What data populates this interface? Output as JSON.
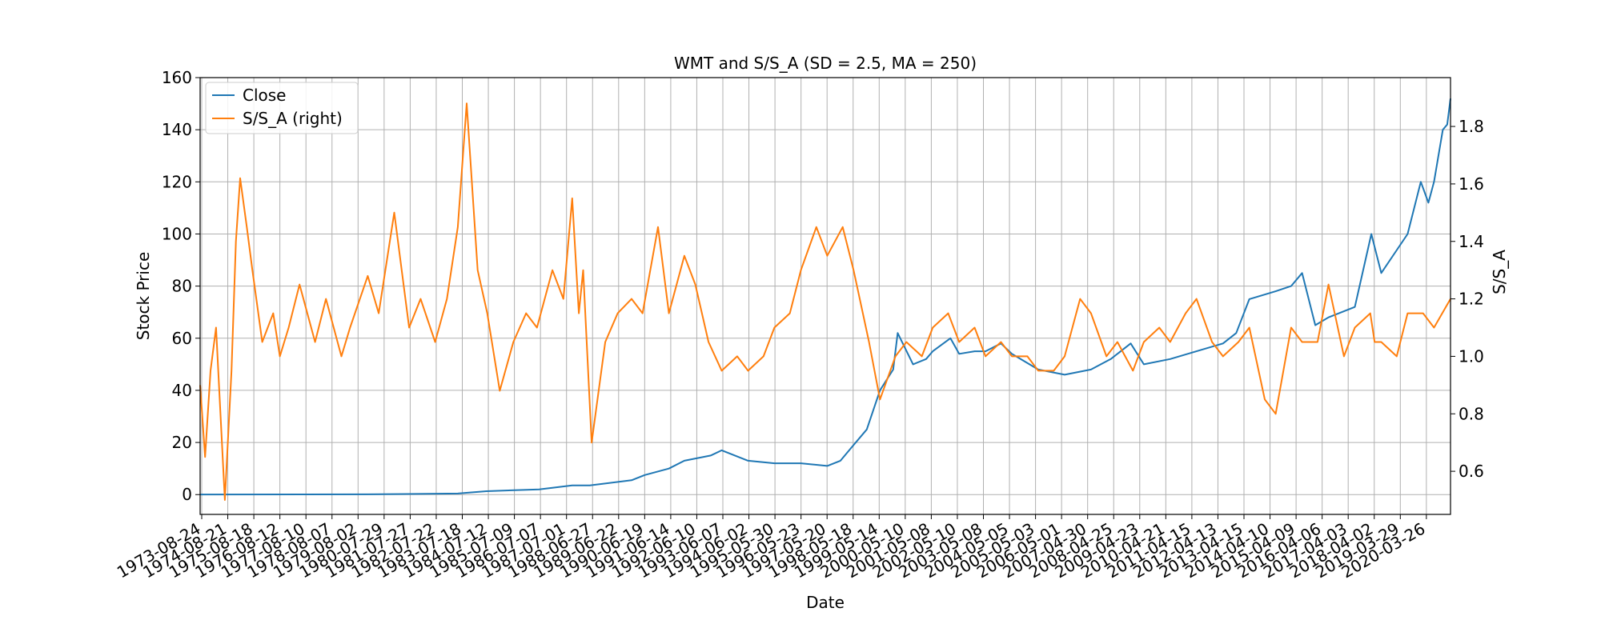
{
  "chart_data": {
    "type": "line",
    "title": "WMT and S/S_A (SD = 2.5, MA = 250)",
    "xlabel": "Date",
    "ylabel": "Stock Price",
    "y2label": "S/S_A",
    "xlim": [
      "1973-08-24",
      "2021-01-15"
    ],
    "ylim": [
      -7.6,
      160
    ],
    "y2lim": [
      0.45,
      1.97
    ],
    "grid": true,
    "legend_position": "top-left",
    "x_tick_labels": [
      "1973-08-24",
      "1974-08-21",
      "1975-08-18",
      "1976-08-12",
      "1977-08-10",
      "1978-08-07",
      "1979-08-02",
      "1980-07-29",
      "1981-07-27",
      "1982-07-22",
      "1983-07-18",
      "1984-07-12",
      "1985-07-09",
      "1986-07-07",
      "1987-07-01",
      "1988-06-27",
      "1989-06-22",
      "1990-06-19",
      "1991-06-14",
      "1992-06-10",
      "1993-06-07",
      "1994-06-02",
      "1995-05-30",
      "1996-05-23",
      "1997-05-20",
      "1998-05-18",
      "1999-05-14",
      "2000-05-10",
      "2001-05-08",
      "2002-05-10",
      "2003-05-08",
      "2004-05-05",
      "2005-05-03",
      "2006-05-01",
      "2007-04-30",
      "2008-04-25",
      "2009-04-23",
      "2010-04-21",
      "2011-04-15",
      "2012-04-13",
      "2013-04-15",
      "2014-04-10",
      "2015-04-09",
      "2016-04-06",
      "2017-04-03",
      "2018-04-02",
      "2019-03-29",
      "2020-03-26"
    ],
    "y_ticks": [
      0,
      20,
      40,
      60,
      80,
      100,
      120,
      140,
      160
    ],
    "y2_ticks": [
      0.6,
      0.8,
      1.0,
      1.2,
      1.4,
      1.6,
      1.8
    ],
    "series": [
      {
        "name": "Close",
        "axis": "left",
        "color": "#1f77b4",
        "x": [
          "1973-08-24",
          "1980-01-01",
          "1983-06-01",
          "1984-07-01",
          "1986-07-01",
          "1987-10-01",
          "1988-06-01",
          "1990-01-01",
          "1990-07-01",
          "1991-06-01",
          "1992-01-01",
          "1993-01-01",
          "1993-06-01",
          "1994-06-01",
          "1995-06-01",
          "1996-06-01",
          "1997-06-01",
          "1997-12-01",
          "1998-05-01",
          "1998-12-01",
          "1999-06-01",
          "1999-12-01",
          "2000-02-01",
          "2000-09-01",
          "2001-03-01",
          "2001-06-01",
          "2002-02-01",
          "2002-06-01",
          "2003-01-01",
          "2003-06-01",
          "2004-01-01",
          "2004-06-01",
          "2005-06-01",
          "2006-06-01",
          "2007-06-01",
          "2008-03-01",
          "2008-12-01",
          "2009-06-01",
          "2010-06-01",
          "2011-06-01",
          "2012-06-01",
          "2012-12-01",
          "2013-06-01",
          "2014-06-01",
          "2015-01-01",
          "2015-06-01",
          "2015-12-01",
          "2016-06-01",
          "2017-06-01",
          "2018-01-15",
          "2018-06-01",
          "2019-06-01",
          "2019-12-01",
          "2020-03-15",
          "2020-06-01",
          "2020-10-01",
          "2020-12-01",
          "2021-01-15"
        ],
        "values": [
          0.05,
          0.1,
          0.4,
          1.3,
          2.0,
          3.5,
          3.5,
          5.5,
          7.5,
          10,
          13,
          15,
          17,
          13,
          12,
          12,
          11,
          13,
          18,
          25,
          40,
          48,
          62,
          50,
          52,
          55,
          60,
          54,
          55,
          55,
          58,
          54,
          48,
          46,
          48,
          52,
          58,
          50,
          52,
          55,
          58,
          62,
          75,
          78,
          80,
          85,
          65,
          68,
          72,
          100,
          85,
          100,
          120,
          112,
          120,
          140,
          142,
          152
        ]
      },
      {
        "name": "S/S_A (right)",
        "axis": "right",
        "color": "#ff7f0e",
        "x": [
          "1973-08-24",
          "1973-11-01",
          "1974-01-15",
          "1974-04-01",
          "1974-08-01",
          "1974-11-01",
          "1975-01-01",
          "1975-03-01",
          "1975-06-01",
          "1975-08-18",
          "1976-01-01",
          "1976-06-01",
          "1976-09-01",
          "1977-01-01",
          "1977-06-01",
          "1978-01-01",
          "1978-06-01",
          "1979-01-01",
          "1979-05-01",
          "1980-01-01",
          "1980-06-01",
          "1981-01-01",
          "1981-07-27",
          "1982-01-01",
          "1982-07-22",
          "1983-01-01",
          "1983-06-01",
          "1983-10-01",
          "1984-03-01",
          "1984-07-12",
          "1985-01-01",
          "1985-07-09",
          "1986-01-01",
          "1986-06-01",
          "1987-01-01",
          "1987-06-01",
          "1987-10-01",
          "1988-01-01",
          "1988-03-01",
          "1988-06-27",
          "1989-01-01",
          "1989-06-22",
          "1990-01-01",
          "1990-06-01",
          "1991-01-01",
          "1991-06-01",
          "1992-01-01",
          "1992-06-01",
          "1992-12-01",
          "1993-06-01",
          "1994-01-01",
          "1994-06-01",
          "1995-01-01",
          "1995-06-01",
          "1996-01-01",
          "1996-06-01",
          "1997-01-01",
          "1997-06-01",
          "1998-01-01",
          "1998-06-01",
          "1999-01-01",
          "1999-06-01",
          "2000-01-01",
          "2000-06-01",
          "2001-01-01",
          "2001-06-01",
          "2002-01-01",
          "2002-06-01",
          "2003-01-01",
          "2003-06-01",
          "2004-01-01",
          "2004-06-01",
          "2005-01-01",
          "2005-06-01",
          "2006-01-01",
          "2006-06-01",
          "2007-01-01",
          "2007-06-01",
          "2008-01-01",
          "2008-06-01",
          "2009-01-01",
          "2009-06-01",
          "2010-01-01",
          "2010-06-01",
          "2011-01-01",
          "2011-06-01",
          "2012-01-01",
          "2012-06-01",
          "2013-01-01",
          "2013-06-01",
          "2014-01-01",
          "2014-06-01",
          "2015-01-01",
          "2015-06-01",
          "2016-01-01",
          "2016-06-01",
          "2017-01-01",
          "2017-06-01",
          "2018-01-01",
          "2018-03-01",
          "2018-06-01",
          "2019-01-01",
          "2019-06-01",
          "2020-01-01",
          "2020-06-01",
          "2021-01-15"
        ],
        "values": [
          0.9,
          0.65,
          0.95,
          1.1,
          0.5,
          0.95,
          1.4,
          1.62,
          1.45,
          1.3,
          1.05,
          1.15,
          1.0,
          1.1,
          1.25,
          1.05,
          1.2,
          1.0,
          1.1,
          1.28,
          1.15,
          1.5,
          1.1,
          1.2,
          1.05,
          1.2,
          1.45,
          1.88,
          1.3,
          1.15,
          0.88,
          1.05,
          1.15,
          1.1,
          1.3,
          1.2,
          1.55,
          1.15,
          1.3,
          0.7,
          1.05,
          1.15,
          1.2,
          1.15,
          1.45,
          1.15,
          1.35,
          1.25,
          1.05,
          0.95,
          1.0,
          0.95,
          1.0,
          1.1,
          1.15,
          1.3,
          1.45,
          1.35,
          1.45,
          1.3,
          1.05,
          0.85,
          1.0,
          1.05,
          1.0,
          1.1,
          1.15,
          1.05,
          1.1,
          1.0,
          1.05,
          1.0,
          1.0,
          0.95,
          0.95,
          1.0,
          1.2,
          1.15,
          1.0,
          1.05,
          0.95,
          1.05,
          1.1,
          1.05,
          1.15,
          1.2,
          1.05,
          1.0,
          1.05,
          1.1,
          0.85,
          0.8,
          1.1,
          1.05,
          1.05,
          1.25,
          1.0,
          1.1,
          1.15,
          1.05,
          1.05,
          1.0,
          1.15,
          1.15,
          1.1,
          1.2
        ]
      }
    ]
  }
}
